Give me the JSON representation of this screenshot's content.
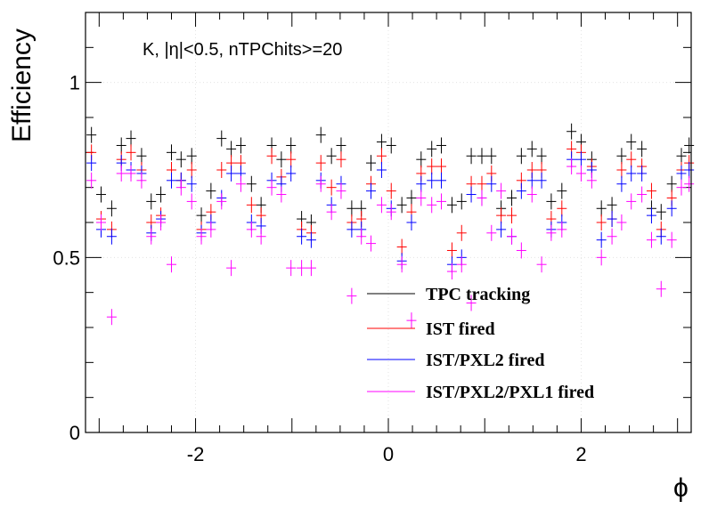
{
  "chart_data": {
    "type": "scatter",
    "title": "",
    "annotation": "K, |η|<0.5, nTPChits>=20",
    "xlabel": "ϕ",
    "ylabel": "Efficiency",
    "xlim": [
      -3.1416,
      3.1416
    ],
    "ylim": [
      0,
      1.2
    ],
    "x_ticks": [
      -2,
      0,
      2
    ],
    "x_tick_labels": [
      "-2",
      "0",
      "2"
    ],
    "y_ticks": [
      0,
      0.5,
      1
    ],
    "y_tick_labels": [
      "0",
      "0.5",
      "1"
    ],
    "grid": true,
    "legend_position": "bottom-right",
    "marker": "cross",
    "x": [
      -3.08,
      -2.98,
      -2.87,
      -2.77,
      -2.67,
      -2.56,
      -2.46,
      -2.36,
      -2.25,
      -2.15,
      -2.04,
      -1.94,
      -1.84,
      -1.73,
      -1.63,
      -1.53,
      -1.42,
      -1.32,
      -1.21,
      -1.11,
      -1.01,
      -0.9,
      -0.8,
      -0.7,
      -0.59,
      -0.49,
      -0.38,
      -0.28,
      -0.18,
      -0.07,
      0.03,
      0.14,
      0.24,
      0.34,
      0.45,
      0.55,
      0.66,
      0.76,
      0.86,
      0.97,
      1.07,
      1.17,
      1.28,
      1.38,
      1.49,
      1.59,
      1.69,
      1.8,
      1.9,
      2.0,
      2.11,
      2.21,
      2.32,
      2.42,
      2.52,
      2.63,
      2.73,
      2.83,
      2.94,
      3.04,
      3.12
    ],
    "series": [
      {
        "name": "TPC tracking",
        "color": "#000000",
        "values": [
          0.85,
          0.68,
          0.64,
          0.82,
          0.84,
          0.79,
          0.66,
          0.68,
          0.8,
          0.78,
          0.79,
          0.62,
          0.69,
          0.84,
          0.81,
          0.82,
          0.71,
          0.65,
          0.82,
          0.78,
          0.82,
          0.61,
          0.6,
          0.85,
          0.79,
          0.82,
          0.64,
          0.64,
          0.77,
          0.83,
          0.82,
          0.65,
          0.67,
          0.78,
          0.81,
          0.82,
          0.65,
          0.66,
          0.79,
          0.79,
          0.79,
          0.64,
          0.67,
          0.79,
          0.81,
          0.79,
          0.66,
          0.69,
          0.86,
          0.83,
          0.78,
          0.64,
          0.65,
          0.79,
          0.83,
          0.81,
          0.64,
          0.63,
          0.71,
          0.79,
          0.82
        ]
      },
      {
        "name": "IST fired",
        "color": "#ff0000",
        "values": [
          0.8,
          0.61,
          0.58,
          0.78,
          0.8,
          0.75,
          0.6,
          0.62,
          0.75,
          0.72,
          0.75,
          0.58,
          0.63,
          0.75,
          0.77,
          0.77,
          0.65,
          0.62,
          0.79,
          0.73,
          0.78,
          0.58,
          0.57,
          0.77,
          0.7,
          0.78,
          0.6,
          0.61,
          0.71,
          0.79,
          0.69,
          0.53,
          0.63,
          0.74,
          0.76,
          0.76,
          0.52,
          0.57,
          0.71,
          0.71,
          0.74,
          0.62,
          0.62,
          0.72,
          0.75,
          0.75,
          0.61,
          0.64,
          0.81,
          0.8,
          0.76,
          0.6,
          0.61,
          0.75,
          0.78,
          0.76,
          0.69,
          0.58,
          0.67,
          0.75,
          0.77
        ]
      },
      {
        "name": "IST/PXL2 fired",
        "color": "#0000ff",
        "values": [
          0.77,
          0.58,
          0.56,
          0.77,
          0.75,
          0.74,
          0.57,
          0.61,
          0.72,
          0.72,
          0.71,
          0.57,
          0.6,
          0.67,
          0.74,
          0.74,
          0.6,
          0.59,
          0.72,
          0.71,
          0.74,
          0.56,
          0.55,
          0.72,
          0.65,
          0.71,
          0.58,
          0.58,
          0.69,
          0.75,
          0.64,
          0.49,
          0.6,
          0.71,
          0.72,
          0.72,
          0.48,
          0.5,
          0.68,
          0.67,
          0.71,
          0.58,
          0.56,
          0.69,
          0.72,
          0.72,
          0.58,
          0.6,
          0.78,
          0.78,
          0.75,
          0.55,
          0.61,
          0.71,
          0.74,
          0.74,
          0.62,
          0.56,
          0.64,
          0.74,
          0.75
        ]
      },
      {
        "name": "IST/PXL2/PXL1 fired",
        "color": "#ff00ff",
        "values": [
          0.72,
          0.6,
          0.33,
          0.74,
          0.74,
          0.72,
          0.56,
          0.6,
          0.48,
          0.7,
          0.66,
          0.56,
          0.58,
          0.66,
          0.47,
          0.71,
          0.58,
          0.56,
          0.7,
          0.68,
          0.47,
          0.47,
          0.47,
          0.71,
          0.63,
          0.69,
          0.39,
          0.56,
          0.54,
          0.65,
          0.63,
          0.48,
          0.32,
          0.67,
          0.65,
          0.66,
          0.46,
          0.48,
          0.37,
          0.67,
          0.57,
          0.69,
          0.56,
          0.52,
          0.68,
          0.48,
          0.57,
          0.58,
          0.76,
          0.74,
          0.72,
          0.5,
          0.56,
          0.6,
          0.66,
          0.68,
          0.55,
          0.41,
          0.55,
          0.7,
          0.71
        ]
      }
    ]
  }
}
